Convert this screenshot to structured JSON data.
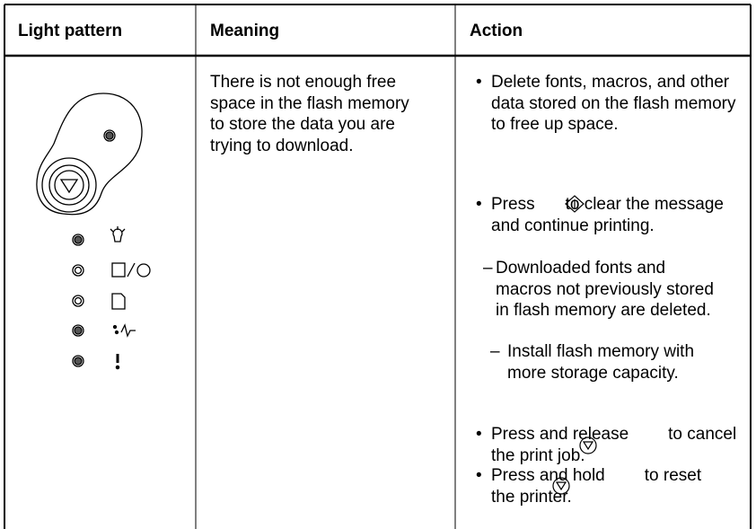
{
  "table": {
    "headers": [
      "Light pattern",
      "Meaning",
      "Action"
    ],
    "rows": [
      {
        "meaning": "There is not enough free space in the flash memory to store the data you are trying to download.",
        "actions": [
          {
            "text": "Delete fonts, macros, and other data stored on the flash memory to free up space."
          },
          {
            "before": "Press",
            "after": "to clear the message and continue printing.",
            "subitems": [
              "Downloaded fonts and macros not previously stored in flash memory are deleted.",
              "Install flash memory with more storage capacity."
            ]
          },
          {
            "before": "Press and release",
            "after": "to cancel the print job."
          },
          {
            "before": "Press and hold",
            "after": "to reset the printer."
          }
        ]
      }
    ]
  }
}
